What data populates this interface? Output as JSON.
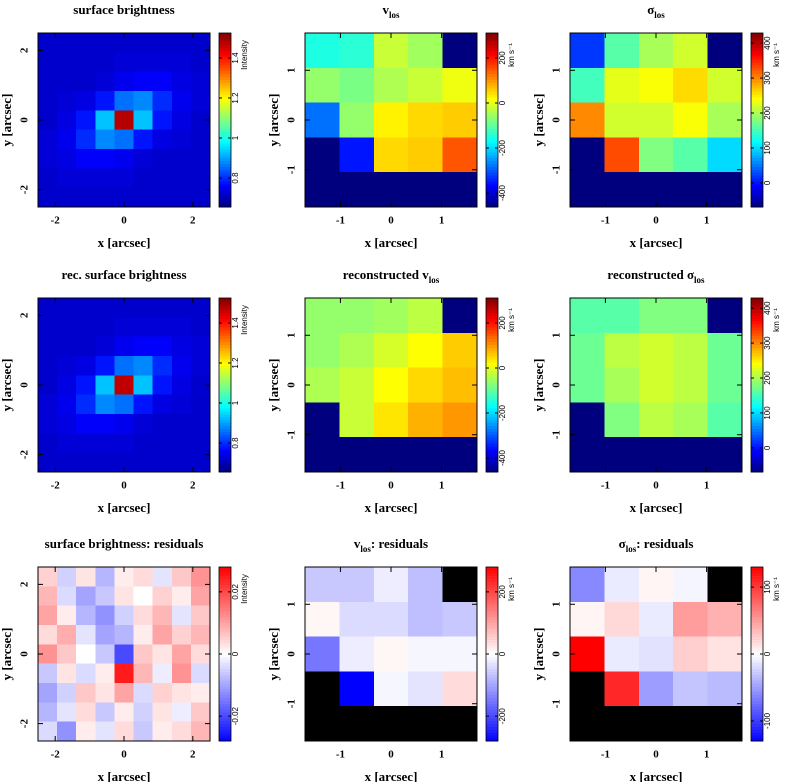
{
  "chart_data": [
    {
      "type": "heatmap",
      "title": "surface brightness",
      "xlabel": "x [arcsec]",
      "ylabel": "y [arcsec]",
      "xlim": [
        -2.5,
        2.5
      ],
      "ylim": [
        -2.5,
        2.5
      ],
      "xticks": [
        -2,
        0,
        2
      ],
      "yticks": [
        -2,
        0,
        2
      ],
      "colormap": "jet",
      "clim": [
        0.655,
        1.525
      ],
      "cticks": [
        0.8,
        1,
        1.2,
        1.4
      ],
      "clabel": "Intensity",
      "grid": [
        [
          0.72,
          0.72,
          0.72,
          0.72,
          0.72,
          0.72,
          0.72,
          0.72,
          0.72
        ],
        [
          0.72,
          0.72,
          0.72,
          0.72,
          0.73,
          0.73,
          0.73,
          0.73,
          0.72
        ],
        [
          0.72,
          0.72,
          0.72,
          0.73,
          0.75,
          0.76,
          0.76,
          0.74,
          0.73
        ],
        [
          0.72,
          0.73,
          0.74,
          0.78,
          0.86,
          0.88,
          0.8,
          0.75,
          0.73
        ],
        [
          0.72,
          0.74,
          0.78,
          0.93,
          1.48,
          0.93,
          0.78,
          0.74,
          0.72
        ],
        [
          0.73,
          0.75,
          0.8,
          0.88,
          0.86,
          0.78,
          0.74,
          0.73,
          0.72
        ],
        [
          0.73,
          0.74,
          0.76,
          0.76,
          0.75,
          0.73,
          0.72,
          0.72,
          0.72
        ],
        [
          0.72,
          0.73,
          0.73,
          0.73,
          0.73,
          0.72,
          0.72,
          0.72,
          0.72
        ],
        [
          0.72,
          0.72,
          0.72,
          0.72,
          0.72,
          0.72,
          0.72,
          0.72,
          0.72
        ]
      ]
    },
    {
      "type": "heatmap",
      "title": "v",
      "title_sub": "los",
      "xlabel": "x [arcsec]",
      "ylabel": "y [arcsec]",
      "xlim": [
        -1.7,
        1.7
      ],
      "ylim": [
        -1.75,
        1.75
      ],
      "xticks": [
        -1,
        0,
        1
      ],
      "yticks": [
        -1,
        0,
        1
      ],
      "colormap": "jet",
      "clim": [
        -462,
        311
      ],
      "cticks": [
        -400,
        -200,
        0,
        200
      ],
      "clabel": "km s⁻¹",
      "mask_color": "#00007f",
      "grid": [
        [
          -150,
          -140,
          -20,
          -50,
          null
        ],
        [
          -60,
          -80,
          -40,
          -20,
          10
        ],
        [
          -280,
          -60,
          30,
          50,
          60
        ],
        [
          null,
          -350,
          50,
          60,
          150
        ],
        [
          null,
          null,
          null,
          null,
          null
        ]
      ]
    },
    {
      "type": "heatmap",
      "title": "σ",
      "title_sub": "los",
      "xlabel": "x [arcsec]",
      "ylabel": "y [arcsec]",
      "xlim": [
        -1.7,
        1.7
      ],
      "ylim": [
        -1.75,
        1.75
      ],
      "xticks": [
        -1,
        0,
        1
      ],
      "yticks": [
        -1,
        0,
        1
      ],
      "colormap": "jet",
      "clim": [
        -69,
        429
      ],
      "cticks": [
        0,
        100,
        200,
        300,
        400
      ],
      "clabel": "km s⁻¹",
      "mask_color": "#00007f",
      "grid": [
        [
          20,
          160,
          200,
          220,
          null
        ],
        [
          150,
          230,
          240,
          260,
          220
        ],
        [
          300,
          220,
          220,
          240,
          200
        ],
        [
          null,
          330,
          180,
          160,
          100
        ],
        [
          null,
          null,
          null,
          null,
          null
        ]
      ]
    },
    {
      "type": "heatmap",
      "title": "rec. surface brightness",
      "xlabel": "x [arcsec]",
      "ylabel": "y [arcsec]",
      "xlim": [
        -2.5,
        2.5
      ],
      "ylim": [
        -2.5,
        2.5
      ],
      "xticks": [
        -2,
        0,
        2
      ],
      "yticks": [
        -2,
        0,
        2
      ],
      "colormap": "jet",
      "clim": [
        0.655,
        1.525
      ],
      "cticks": [
        0.8,
        1,
        1.2,
        1.4
      ],
      "clabel": "Intensity",
      "grid": [
        [
          0.72,
          0.72,
          0.72,
          0.72,
          0.72,
          0.72,
          0.72,
          0.72,
          0.72
        ],
        [
          0.72,
          0.72,
          0.72,
          0.72,
          0.73,
          0.73,
          0.73,
          0.73,
          0.72
        ],
        [
          0.72,
          0.72,
          0.72,
          0.73,
          0.75,
          0.76,
          0.76,
          0.74,
          0.73
        ],
        [
          0.72,
          0.73,
          0.74,
          0.78,
          0.86,
          0.88,
          0.8,
          0.75,
          0.73
        ],
        [
          0.72,
          0.74,
          0.78,
          0.93,
          1.47,
          0.93,
          0.78,
          0.74,
          0.72
        ],
        [
          0.73,
          0.75,
          0.8,
          0.88,
          0.86,
          0.78,
          0.74,
          0.73,
          0.72
        ],
        [
          0.73,
          0.74,
          0.76,
          0.76,
          0.75,
          0.73,
          0.72,
          0.72,
          0.72
        ],
        [
          0.72,
          0.73,
          0.73,
          0.73,
          0.73,
          0.72,
          0.72,
          0.72,
          0.72
        ],
        [
          0.72,
          0.72,
          0.72,
          0.72,
          0.72,
          0.72,
          0.72,
          0.72,
          0.72
        ]
      ]
    },
    {
      "type": "heatmap",
      "title": "reconstructed v",
      "title_sub": "los",
      "xlabel": "x [arcsec]",
      "ylabel": "y [arcsec]",
      "xlim": [
        -1.7,
        1.7
      ],
      "ylim": [
        -1.75,
        1.75
      ],
      "xticks": [
        -1,
        0,
        1
      ],
      "yticks": [
        -1,
        0,
        1
      ],
      "colormap": "jet",
      "clim": [
        -462,
        311
      ],
      "cticks": [
        -400,
        -200,
        0,
        200
      ],
      "clabel": "km s⁻¹",
      "mask_color": "#00007f",
      "grid": [
        [
          -60,
          -60,
          -50,
          -30,
          null
        ],
        [
          -60,
          -40,
          -10,
          20,
          60
        ],
        [
          -40,
          -20,
          20,
          50,
          70
        ],
        [
          null,
          -20,
          40,
          80,
          100
        ],
        [
          null,
          null,
          null,
          null,
          null
        ]
      ]
    },
    {
      "type": "heatmap",
      "title": "reconstructed σ",
      "title_sub": "los",
      "xlabel": "x [arcsec]",
      "ylabel": "y [arcsec]",
      "xlim": [
        -1.7,
        1.7
      ],
      "ylim": [
        -1.75,
        1.75
      ],
      "xticks": [
        -1,
        0,
        1
      ],
      "yticks": [
        -1,
        0,
        1
      ],
      "colormap": "jet",
      "clim": [
        -69,
        429
      ],
      "cticks": [
        0,
        100,
        200,
        300,
        400
      ],
      "clabel": "km s⁻¹",
      "mask_color": "#00007f",
      "grid": [
        [
          160,
          160,
          180,
          180,
          null
        ],
        [
          170,
          210,
          220,
          210,
          170
        ],
        [
          170,
          200,
          220,
          210,
          170
        ],
        [
          null,
          180,
          210,
          200,
          160
        ],
        [
          null,
          null,
          null,
          null,
          null
        ]
      ]
    },
    {
      "type": "heatmap",
      "title": "surface brightness: residuals",
      "xlabel": "x [arcsec]",
      "ylabel": "y [arcsec]",
      "xlim": [
        -2.5,
        2.5
      ],
      "ylim": [
        -2.5,
        2.5
      ],
      "xticks": [
        -2,
        0,
        2
      ],
      "yticks": [
        -2,
        0,
        2
      ],
      "colormap": "bwr",
      "clim": [
        -0.028,
        0.028
      ],
      "cticks": [
        -0.02,
        0,
        0.02
      ],
      "clabel": "Intensity",
      "grid": [
        [
          0.005,
          -0.005,
          0.003,
          -0.008,
          0.002,
          0.004,
          -0.003,
          0.006,
          0.012
        ],
        [
          0.008,
          -0.004,
          -0.01,
          -0.006,
          0.003,
          0.0,
          0.005,
          0.002,
          0.01
        ],
        [
          0.01,
          0.002,
          -0.008,
          -0.012,
          -0.005,
          0.004,
          0.008,
          -0.003,
          0.006
        ],
        [
          0.004,
          0.009,
          -0.003,
          -0.01,
          -0.008,
          0.002,
          0.01,
          0.005,
          0.008
        ],
        [
          0.012,
          0.006,
          0.0,
          -0.006,
          -0.02,
          0.006,
          0.003,
          0.01,
          0.004
        ],
        [
          -0.006,
          0.003,
          -0.004,
          0.002,
          0.025,
          0.008,
          -0.002,
          0.012,
          -0.004
        ],
        [
          -0.01,
          -0.005,
          0.006,
          0.003,
          0.01,
          -0.004,
          0.005,
          0.003,
          0.002
        ],
        [
          -0.008,
          -0.003,
          0.004,
          -0.006,
          0.002,
          -0.005,
          0.003,
          -0.002,
          0.006
        ],
        [
          -0.004,
          -0.012,
          0.002,
          -0.003,
          0.004,
          -0.006,
          0.002,
          0.004,
          0.008
        ]
      ]
    },
    {
      "type": "heatmap",
      "title": "v",
      "title_sub": "los",
      "title_suffix": ": residuals",
      "xlabel": "x [arcsec]",
      "ylabel": "y [arcsec]",
      "xlim": [
        -1.7,
        1.7
      ],
      "ylim": [
        -1.75,
        1.75
      ],
      "xticks": [
        -1,
        0,
        1
      ],
      "yticks": [
        -1,
        0,
        1
      ],
      "colormap": "bwr",
      "clim": [
        -280,
        280
      ],
      "cticks": [
        -200,
        0,
        200
      ],
      "clabel": "km s⁻¹",
      "mask_color": "#000000",
      "grid": [
        [
          -60,
          -60,
          -20,
          -70,
          null
        ],
        [
          10,
          -40,
          -40,
          -70,
          -60
        ],
        [
          -150,
          -20,
          10,
          -10,
          -10
        ],
        [
          null,
          -280,
          -10,
          -30,
          40
        ],
        [
          null,
          null,
          null,
          null,
          null
        ]
      ]
    },
    {
      "type": "heatmap",
      "title": "σ",
      "title_sub": "los",
      "title_suffix": ": residuals",
      "xlabel": "x [arcsec]",
      "ylabel": "y [arcsec]",
      "xlim": [
        -1.7,
        1.7
      ],
      "ylim": [
        -1.75,
        1.75
      ],
      "xticks": [
        -1,
        0,
        1
      ],
      "yticks": [
        -1,
        0,
        1
      ],
      "colormap": "bwr",
      "clim": [
        -130,
        130
      ],
      "cticks": [
        -100,
        0,
        100
      ],
      "clabel": "km s⁻¹",
      "mask_color": "#000000",
      "grid": [
        [
          -60,
          -10,
          5,
          -5,
          null
        ],
        [
          5,
          20,
          -10,
          50,
          40
        ],
        [
          130,
          -10,
          -15,
          25,
          15
        ],
        [
          null,
          110,
          -50,
          -30,
          -35
        ],
        [
          null,
          null,
          null,
          null,
          null
        ]
      ]
    }
  ]
}
